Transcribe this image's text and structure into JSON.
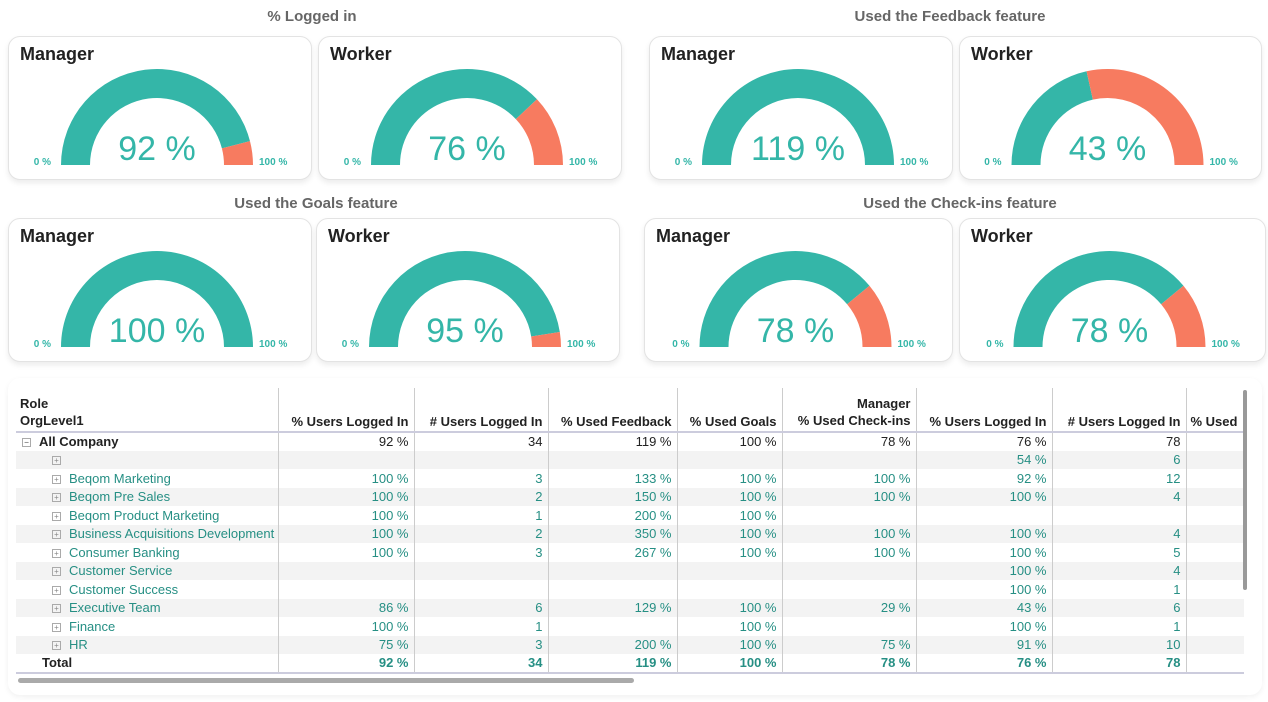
{
  "colors": {
    "fill": "#34B6A8",
    "rest": "#F77B60"
  },
  "sections": [
    {
      "title": "% Logged in",
      "gauges": [
        {
          "role": "Manager",
          "value": 92,
          "label": "92 %"
        },
        {
          "role": "Worker",
          "value": 76,
          "label": "76 %"
        }
      ]
    },
    {
      "title": "Used the Feedback feature",
      "gauges": [
        {
          "role": "Manager",
          "value": 119,
          "label": "119 %"
        },
        {
          "role": "Worker",
          "value": 43,
          "label": "43 %"
        }
      ]
    },
    {
      "title": "Used the Goals feature",
      "gauges": [
        {
          "role": "Manager",
          "value": 100,
          "label": "100 %"
        },
        {
          "role": "Worker",
          "value": 95,
          "label": "95 %"
        }
      ]
    },
    {
      "title": "Used the Check-ins feature",
      "gauges": [
        {
          "role": "Manager",
          "value": 78,
          "label": "78 %"
        },
        {
          "role": "Worker",
          "value": 78,
          "label": "78 %"
        }
      ]
    }
  ],
  "gauge_min": "0 %",
  "gauge_max": "100 %",
  "table": {
    "row_header_1": "Role",
    "row_header_2": "OrgLevel1",
    "group_label": "Manager",
    "columns": [
      "% Users Logged In",
      "# Users Logged In",
      "% Used Feedback",
      "% Used Goals",
      "% Used Check-ins",
      "% Users Logged In",
      "# Users Logged In",
      "% Used"
    ],
    "rows": [
      {
        "name": "All Company",
        "vals": [
          "92 %",
          "34",
          "119 %",
          "100 %",
          "78 %",
          "76 %",
          "78",
          ""
        ]
      },
      {
        "name": "",
        "vals": [
          "",
          "",
          "",
          "",
          "",
          "54 %",
          "6",
          ""
        ]
      },
      {
        "name": "Beqom Marketing",
        "vals": [
          "100 %",
          "3",
          "133 %",
          "100 %",
          "100 %",
          "92 %",
          "12",
          ""
        ]
      },
      {
        "name": "Beqom Pre Sales",
        "vals": [
          "100 %",
          "2",
          "150 %",
          "100 %",
          "100 %",
          "100 %",
          "4",
          ""
        ]
      },
      {
        "name": "Beqom Product Marketing",
        "vals": [
          "100 %",
          "1",
          "200 %",
          "100 %",
          "",
          "",
          "",
          ""
        ]
      },
      {
        "name": "Business Acquisitions Development",
        "vals": [
          "100 %",
          "2",
          "350 %",
          "100 %",
          "100 %",
          "100 %",
          "4",
          ""
        ]
      },
      {
        "name": "Consumer Banking",
        "vals": [
          "100 %",
          "3",
          "267 %",
          "100 %",
          "100 %",
          "100 %",
          "5",
          ""
        ]
      },
      {
        "name": "Customer Service",
        "vals": [
          "",
          "",
          "",
          "",
          "",
          "100 %",
          "4",
          ""
        ]
      },
      {
        "name": "Customer Success",
        "vals": [
          "",
          "",
          "",
          "",
          "",
          "100 %",
          "1",
          ""
        ]
      },
      {
        "name": "Executive Team",
        "vals": [
          "86 %",
          "6",
          "129 %",
          "100 %",
          "29 %",
          "43 %",
          "6",
          ""
        ]
      },
      {
        "name": "Finance",
        "vals": [
          "100 %",
          "1",
          "",
          "100 %",
          "",
          "100 %",
          "1",
          ""
        ]
      },
      {
        "name": "HR",
        "vals": [
          "75 %",
          "3",
          "200 %",
          "100 %",
          "75 %",
          "91 %",
          "10",
          ""
        ]
      }
    ],
    "total": {
      "name": "Total",
      "vals": [
        "92 %",
        "34",
        "119 %",
        "100 %",
        "78 %",
        "76 %",
        "78",
        ""
      ]
    }
  }
}
